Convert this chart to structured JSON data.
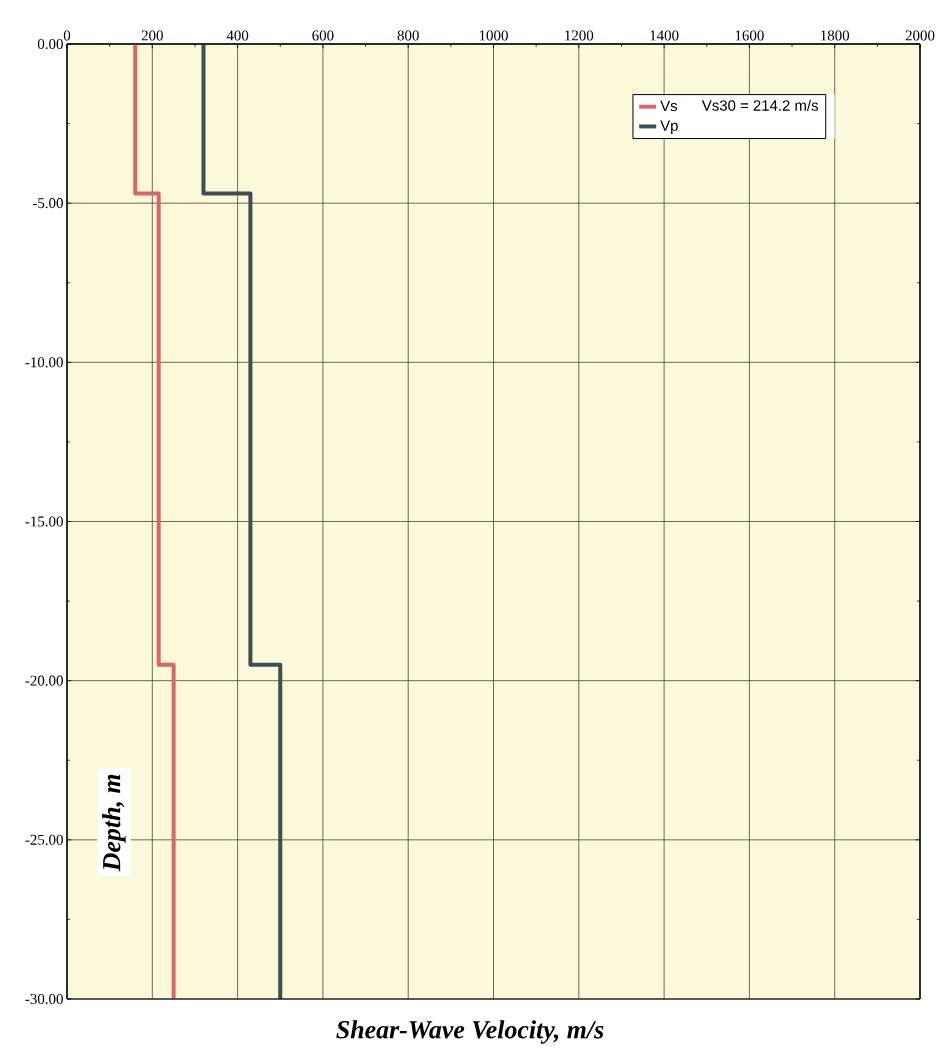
{
  "chart_data": {
    "type": "line",
    "xlabel": "Shear-Wave Velocity, m/s",
    "ylabel": "Depth, m",
    "xlim": [
      0,
      2000
    ],
    "ylim": [
      -30,
      0
    ],
    "xticks": [
      0,
      200,
      400,
      600,
      800,
      1000,
      1200,
      1400,
      1600,
      1800,
      2000
    ],
    "yticks": [
      {
        "value": 0,
        "label": "0.00"
      },
      {
        "value": -5,
        "label": "-5.00"
      },
      {
        "value": -10,
        "label": "-10.00"
      },
      {
        "value": -15,
        "label": "-15.00"
      },
      {
        "value": -20,
        "label": "-20.00"
      },
      {
        "value": -25,
        "label": "-25.00"
      },
      {
        "value": -30,
        "label": "-30.00"
      }
    ],
    "grid": true,
    "legend": "top right",
    "marker": "none",
    "line_style": "solid",
    "annotations": [
      "Vs30 =  214.2 m/s"
    ],
    "series": [
      {
        "name": "Vs",
        "color": "#d9666b",
        "x": [
          160,
          160,
          215,
          215,
          250,
          250
        ],
        "values": [
          0,
          -4.7,
          -4.7,
          -19.5,
          -19.5,
          -30
        ]
      },
      {
        "name": "Vp",
        "color": "#3d4f55",
        "x": [
          320,
          320,
          430,
          430,
          500,
          500
        ],
        "values": [
          0,
          -4.7,
          -4.7,
          -19.5,
          -19.5,
          -30
        ]
      }
    ]
  }
}
